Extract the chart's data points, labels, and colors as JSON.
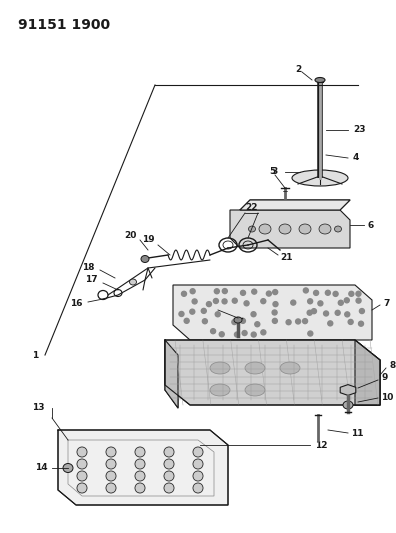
{
  "title": "91151 1900",
  "title_fontsize": 10,
  "title_fontweight": "bold",
  "bg_color": "#ffffff",
  "line_color": "#1a1a1a",
  "line_width": 0.8,
  "label_fontsize": 6.5,
  "label_fontweight": "bold",
  "figsize": [
    3.96,
    5.33
  ],
  "dpi": 100,
  "leader_lw": 0.6,
  "gray_fill": "#cccccc",
  "light_gray": "#e8e8e8",
  "mid_gray": "#b0b0b0"
}
